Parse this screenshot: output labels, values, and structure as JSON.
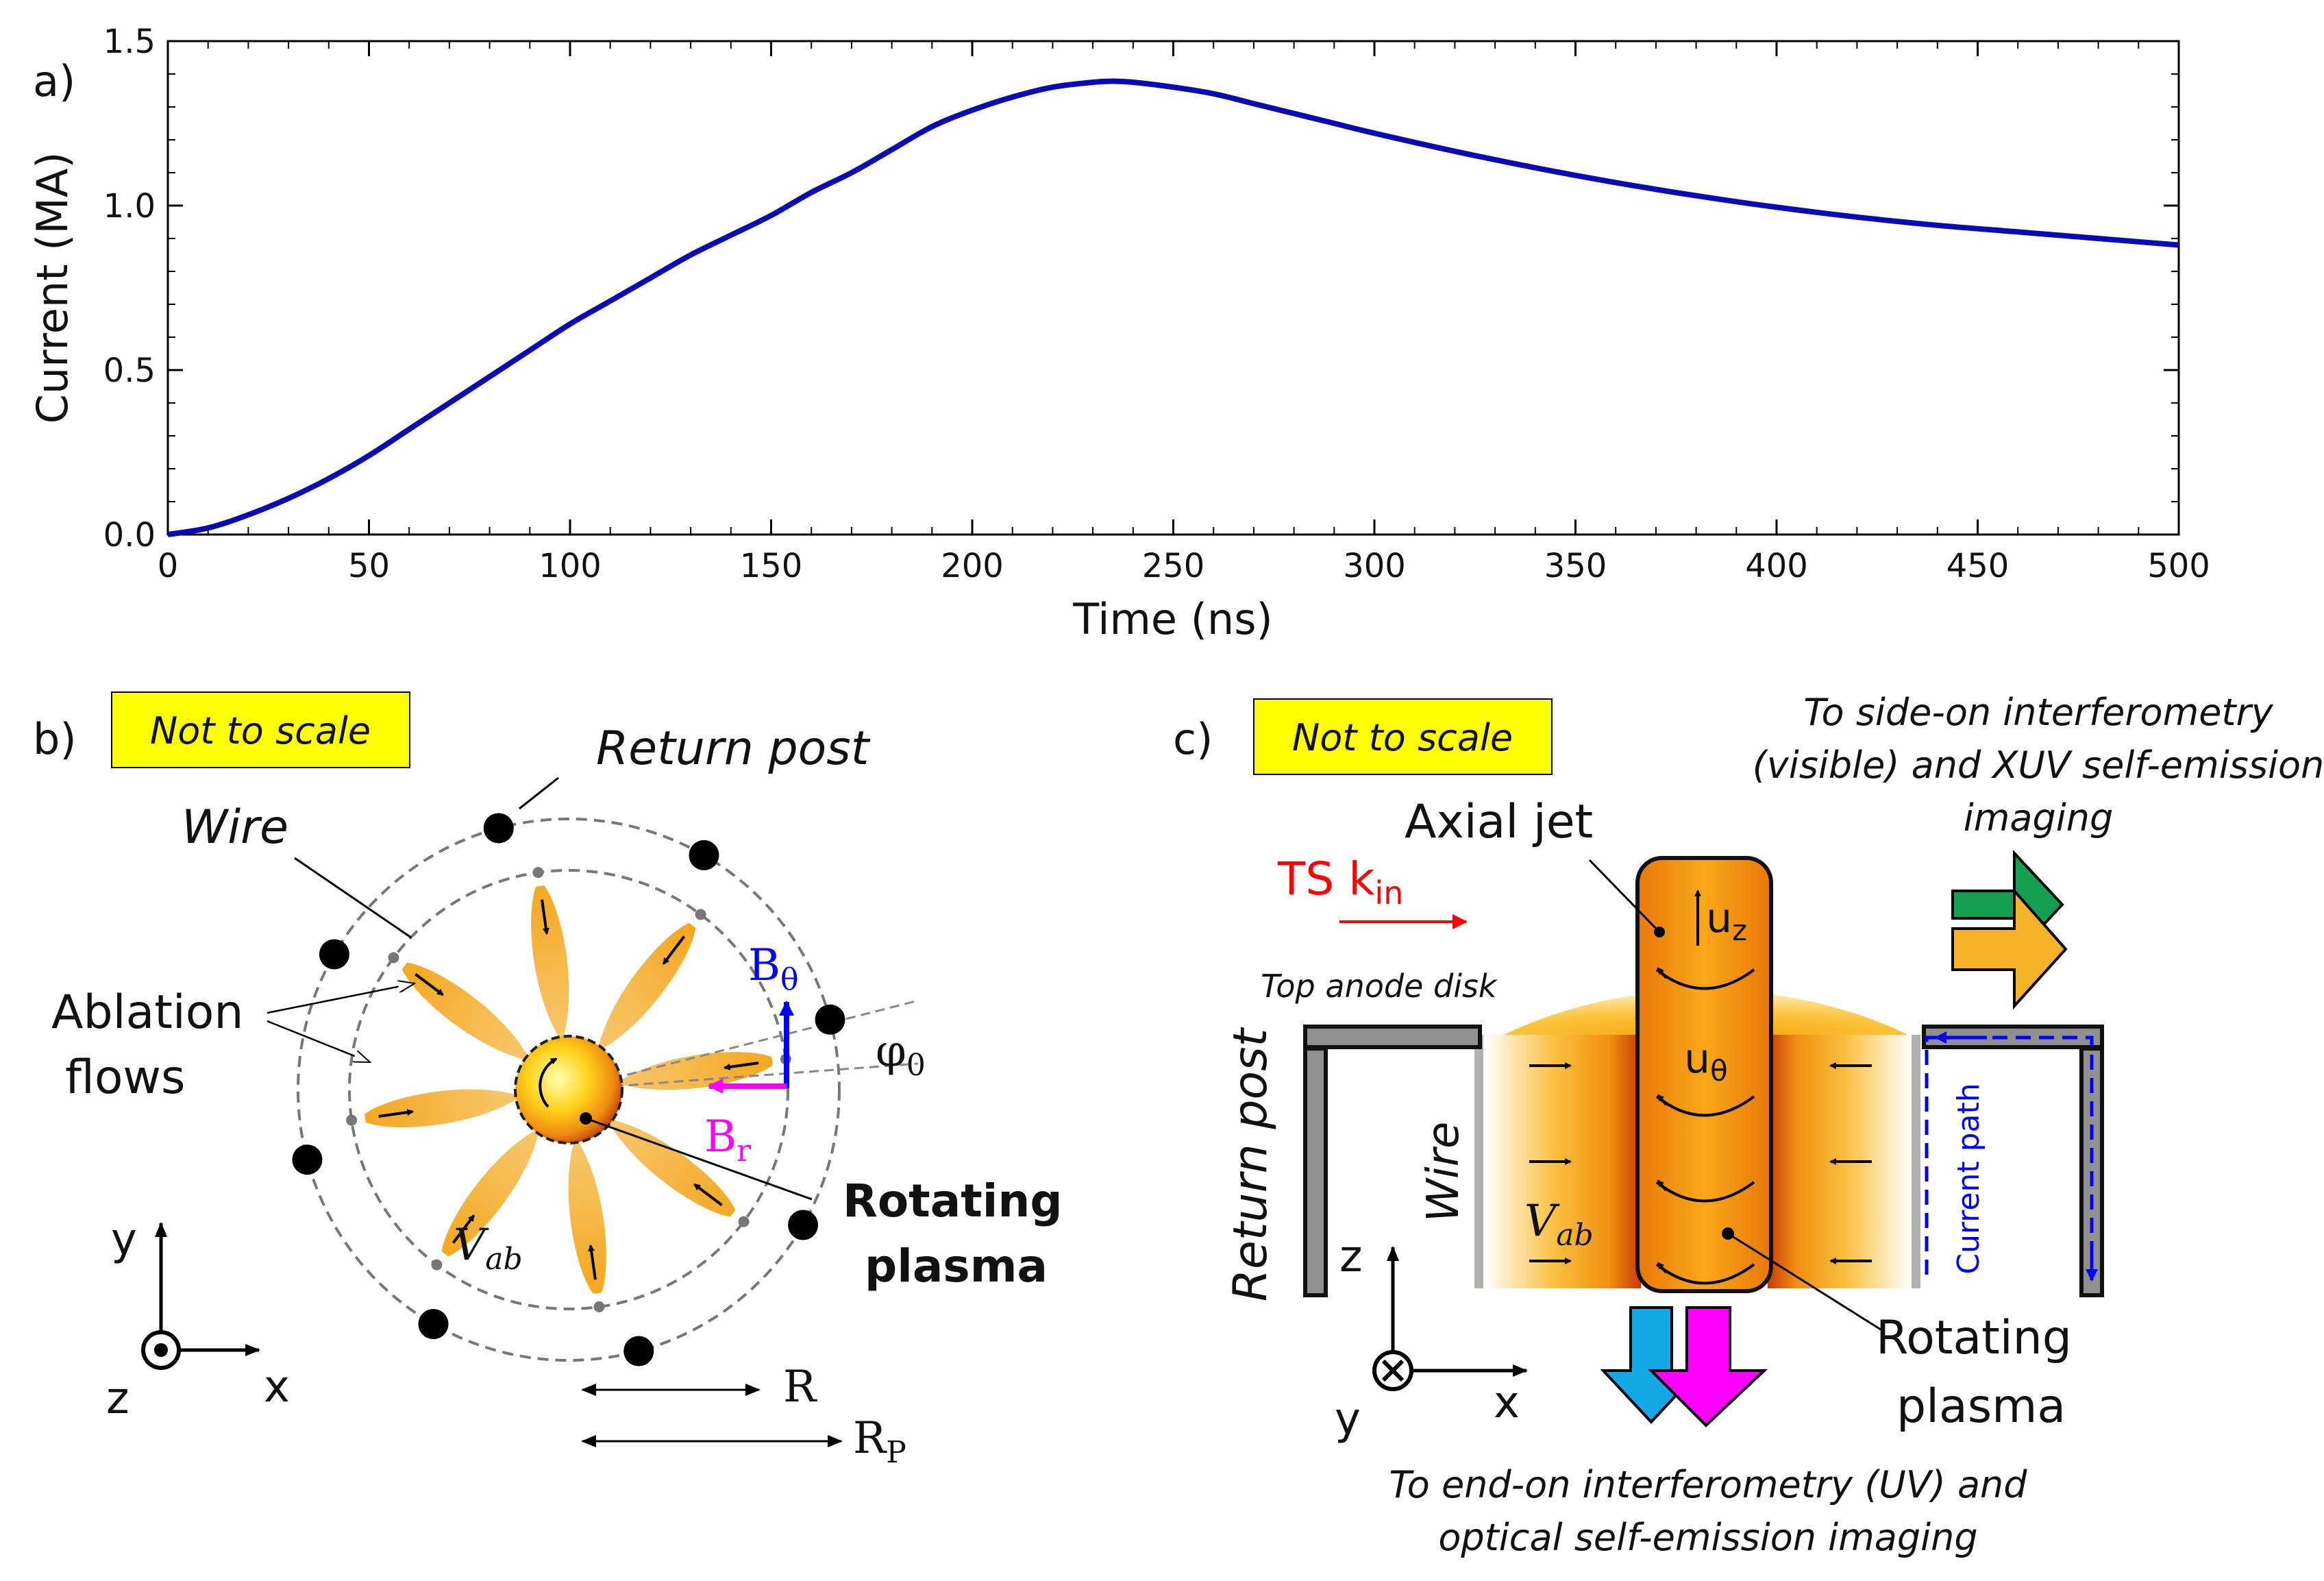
{
  "panel_a": {
    "label": "a)",
    "chart_data": {
      "type": "line",
      "xlabel": "Time (ns)",
      "ylabel": "Current (MA)",
      "xlim": [
        0,
        500
      ],
      "ylim": [
        0,
        1.5
      ],
      "xticks": [
        "0",
        "50",
        "100",
        "150",
        "200",
        "250",
        "300",
        "350",
        "400",
        "450",
        "500"
      ],
      "yticks": [
        "0.0",
        "0.5",
        "1.0",
        "1.5"
      ],
      "grid": false,
      "series": [
        {
          "color": "#0a0ab4",
          "x": [
            0,
            10,
            20,
            30,
            40,
            50,
            60,
            70,
            80,
            90,
            100,
            110,
            120,
            130,
            140,
            150,
            160,
            170,
            180,
            190,
            200,
            210,
            220,
            230,
            235,
            240,
            250,
            260,
            270,
            280,
            290,
            300,
            320,
            340,
            360,
            380,
            400,
            420,
            440,
            460,
            480,
            500
          ],
          "y": [
            0.0,
            0.02,
            0.06,
            0.11,
            0.17,
            0.24,
            0.32,
            0.4,
            0.48,
            0.56,
            0.64,
            0.71,
            0.78,
            0.85,
            0.91,
            0.97,
            1.04,
            1.1,
            1.17,
            1.24,
            1.29,
            1.33,
            1.36,
            1.375,
            1.378,
            1.375,
            1.36,
            1.34,
            1.31,
            1.28,
            1.25,
            1.22,
            1.165,
            1.115,
            1.07,
            1.03,
            0.995,
            0.965,
            0.94,
            0.92,
            0.9,
            0.88
          ]
        }
      ]
    }
  },
  "panel_b": {
    "label": "b)",
    "not_to_scale": "Not to scale",
    "return_post": "Return post",
    "wire": "Wire",
    "ablation_flows_1": "Ablation",
    "ablation_flows_2": "flows",
    "b_theta": "B",
    "b_theta_sub": "θ",
    "b_r": "B",
    "b_r_sub": "r",
    "phi": "φ",
    "phi_sub": "0",
    "v_ab": "V",
    "v_ab_sub": "ab",
    "rotating_1": "Rotating",
    "rotating_2": "plasma",
    "axis_y": "y",
    "axis_x": "x",
    "axis_z": "z",
    "r_label": "R",
    "rp_label": "R",
    "rp_sub": "P"
  },
  "panel_c": {
    "label": "c)",
    "not_to_scale": "Not to scale",
    "side_on_1": "To side-on interferometry",
    "side_on_2": "(visible) and XUV self-emission",
    "side_on_3": "imaging",
    "axial_jet": "Axial jet",
    "ts": "TS k",
    "ts_sub": "in",
    "u_z": "u",
    "u_z_sub": "z",
    "u_theta": "u",
    "u_theta_sub": "θ",
    "top_anode": "Top anode disk",
    "return_post": "Return post",
    "wire": "Wire",
    "v_ab": "V",
    "v_ab_sub": "ab",
    "current_path": "Current path",
    "axis_z": "z",
    "axis_y": "y",
    "axis_x": "x",
    "rotating_1": "Rotating",
    "rotating_2": "plasma",
    "end_on_1": "To end-on interferometry (UV) and",
    "end_on_2": "optical self-emission imaging"
  },
  "colors": {
    "curve": "#0a0ab4",
    "note_bg": "#ffff00",
    "flow": "#f5b830",
    "b_theta": "#0000ff",
    "b_r": "#ff00ff",
    "ts": "#ff0000",
    "arrow_green": "#14a050",
    "arrow_orange": "#f5b428",
    "arrow_cyan": "#14a8e6",
    "arrow_magenta": "#ff00ff"
  }
}
